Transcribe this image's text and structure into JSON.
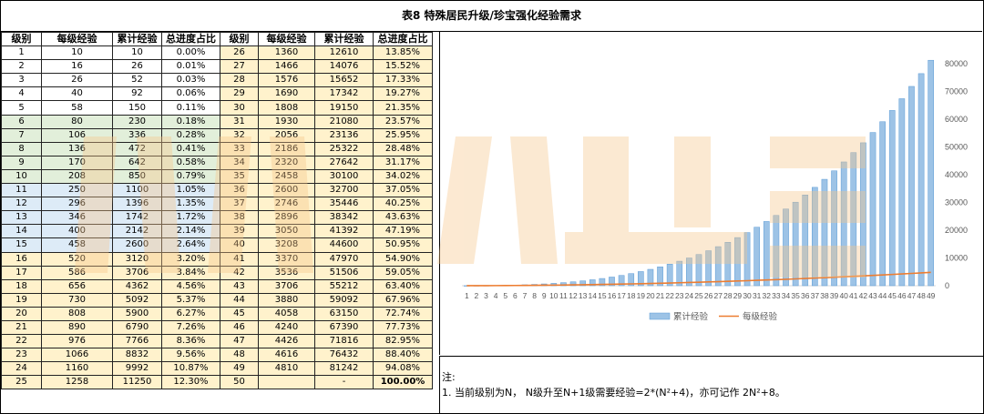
{
  "title": "表8 特殊居民升级/珍宝强化经验需求",
  "headers": [
    "级别",
    "每级经验",
    "累计经验",
    "总进度占比",
    "级别",
    "每级经验",
    "累计经验",
    "总进度占比"
  ],
  "rows_left": [
    [
      "1",
      "10",
      "10",
      "0.00%"
    ],
    [
      "2",
      "16",
      "26",
      "0.01%"
    ],
    [
      "3",
      "26",
      "52",
      "0.03%"
    ],
    [
      "4",
      "40",
      "92",
      "0.06%"
    ],
    [
      "5",
      "58",
      "150",
      "0.11%"
    ],
    [
      "6",
      "80",
      "230",
      "0.18%"
    ],
    [
      "7",
      "106",
      "336",
      "0.28%"
    ],
    [
      "8",
      "136",
      "472",
      "0.41%"
    ],
    [
      "9",
      "170",
      "642",
      "0.58%"
    ],
    [
      "10",
      "208",
      "850",
      "0.79%"
    ],
    [
      "11",
      "250",
      "1100",
      "1.05%"
    ],
    [
      "12",
      "296",
      "1396",
      "1.35%"
    ],
    [
      "13",
      "346",
      "1742",
      "1.72%"
    ],
    [
      "14",
      "400",
      "2142",
      "2.14%"
    ],
    [
      "15",
      "458",
      "2600",
      "2.64%"
    ],
    [
      "16",
      "520",
      "3120",
      "3.20%"
    ],
    [
      "17",
      "586",
      "3706",
      "3.84%"
    ],
    [
      "18",
      "656",
      "4362",
      "4.56%"
    ],
    [
      "19",
      "730",
      "5092",
      "5.37%"
    ],
    [
      "20",
      "808",
      "5900",
      "6.27%"
    ],
    [
      "21",
      "890",
      "6790",
      "7.26%"
    ],
    [
      "22",
      "976",
      "7766",
      "8.36%"
    ],
    [
      "23",
      "1066",
      "8832",
      "9.56%"
    ],
    [
      "24",
      "1160",
      "9992",
      "10.87%"
    ],
    [
      "25",
      "1258",
      "11250",
      "12.30%"
    ]
  ],
  "rows_right": [
    [
      "26",
      "1360",
      "12610",
      "13.85%"
    ],
    [
      "27",
      "1466",
      "14076",
      "15.52%"
    ],
    [
      "28",
      "1576",
      "15652",
      "17.33%"
    ],
    [
      "29",
      "1690",
      "17342",
      "19.27%"
    ],
    [
      "30",
      "1808",
      "19150",
      "21.35%"
    ],
    [
      "31",
      "1930",
      "21080",
      "23.57%"
    ],
    [
      "32",
      "2056",
      "23136",
      "25.95%"
    ],
    [
      "33",
      "2186",
      "25322",
      "28.48%"
    ],
    [
      "34",
      "2320",
      "27642",
      "31.17%"
    ],
    [
      "35",
      "2458",
      "30100",
      "34.02%"
    ],
    [
      "36",
      "2600",
      "32700",
      "37.05%"
    ],
    [
      "37",
      "2746",
      "35446",
      "40.25%"
    ],
    [
      "38",
      "2896",
      "38342",
      "43.63%"
    ],
    [
      "39",
      "3050",
      "41392",
      "47.19%"
    ],
    [
      "40",
      "3208",
      "44600",
      "50.95%"
    ],
    [
      "41",
      "3370",
      "47970",
      "54.90%"
    ],
    [
      "42",
      "3536",
      "51506",
      "59.05%"
    ],
    [
      "43",
      "3706",
      "55212",
      "63.40%"
    ],
    [
      "44",
      "3880",
      "59092",
      "67.96%"
    ],
    [
      "45",
      "4058",
      "63150",
      "72.74%"
    ],
    [
      "46",
      "4240",
      "67390",
      "77.73%"
    ],
    [
      "47",
      "4426",
      "71816",
      "82.95%"
    ],
    [
      "48",
      "4616",
      "76432",
      "88.40%"
    ],
    [
      "49",
      "4810",
      "81242",
      "94.08%"
    ],
    [
      "50",
      "",
      "-",
      "100.00%"
    ]
  ],
  "watermark": "小小黑",
  "note": {
    "heading": "注:",
    "line1": "1. 当前级别为N， N级升至N+1级需要经验=2*(N²+4)，亦可记作 2N²+8。"
  },
  "colors": {
    "bar": "#9dc3e6",
    "bar_edge": "#5b9bd5",
    "line": "#ed7d31",
    "group1": "#ffffff",
    "group2": "#e2efda",
    "group3": "#ddebf7",
    "group4": "#fff2cc",
    "watermark": "#f7c68a"
  },
  "chart_data": {
    "type": "bar",
    "title": "",
    "xlabel": "",
    "ylabel": "",
    "ylim": [
      0,
      80000
    ],
    "yticks": [
      "0",
      "10000",
      "20000",
      "30000",
      "40000",
      "50000",
      "60000",
      "70000",
      "80000"
    ],
    "y_axis_side": "right",
    "categories": [
      "1",
      "2",
      "3",
      "4",
      "5",
      "6",
      "7",
      "8",
      "9",
      "10",
      "11",
      "12",
      "13",
      "14",
      "15",
      "16",
      "17",
      "18",
      "19",
      "20",
      "21",
      "22",
      "23",
      "24",
      "25",
      "26",
      "27",
      "28",
      "29",
      "30",
      "31",
      "32",
      "33",
      "34",
      "35",
      "36",
      "37",
      "38",
      "39",
      "40",
      "41",
      "42",
      "43",
      "44",
      "45",
      "46",
      "47",
      "48",
      "49"
    ],
    "series": [
      {
        "name": "累计经验",
        "type": "bar",
        "values": [
          10,
          26,
          52,
          92,
          150,
          230,
          336,
          472,
          642,
          850,
          1100,
          1396,
          1742,
          2142,
          2600,
          3120,
          3706,
          4362,
          5092,
          5900,
          6790,
          7766,
          8832,
          9992,
          11250,
          12610,
          14076,
          15652,
          17342,
          19150,
          21080,
          23136,
          25322,
          27642,
          30100,
          32700,
          35446,
          38342,
          41392,
          44600,
          47970,
          51506,
          55212,
          59092,
          63150,
          67390,
          71816,
          76432,
          81242
        ]
      },
      {
        "name": "每级经验",
        "type": "line",
        "values": [
          10,
          16,
          26,
          40,
          58,
          80,
          106,
          136,
          170,
          208,
          250,
          296,
          346,
          400,
          458,
          520,
          586,
          656,
          730,
          808,
          890,
          976,
          1066,
          1160,
          1258,
          1360,
          1466,
          1576,
          1690,
          1808,
          1930,
          2056,
          2186,
          2320,
          2458,
          2600,
          2746,
          2896,
          3050,
          3208,
          3370,
          3536,
          3706,
          3880,
          4058,
          4240,
          4426,
          4616,
          4810
        ]
      }
    ],
    "legend_position": "bottom",
    "grid": false
  }
}
